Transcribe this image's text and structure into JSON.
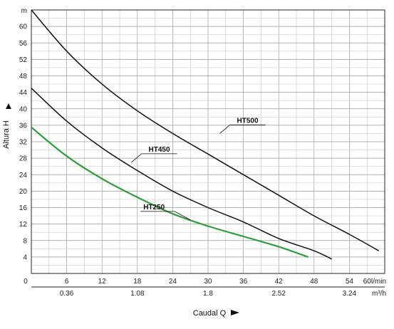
{
  "chart_data": {
    "type": "line",
    "ylabel": "Altura H",
    "yunit": "m",
    "xlabel": "Caudal Q",
    "xunit_primary": "l/min",
    "xunit_secondary": "m³/h",
    "xlim": [
      0,
      60
    ],
    "ylim": [
      0,
      64
    ],
    "grid": true,
    "y_ticks": [
      4,
      8,
      12,
      16,
      20,
      24,
      28,
      32,
      36,
      40,
      44,
      48,
      52,
      56,
      60
    ],
    "x_ticks_primary": [
      {
        "v": 0,
        "label": "0"
      },
      {
        "v": 6,
        "label": "6"
      },
      {
        "v": 12,
        "label": "12"
      },
      {
        "v": 18,
        "label": "18"
      },
      {
        "v": 24,
        "label": "24"
      },
      {
        "v": 30,
        "label": "30"
      },
      {
        "v": 36,
        "label": "36"
      },
      {
        "v": 42,
        "label": "42"
      },
      {
        "v": 48,
        "label": "48"
      },
      {
        "v": 54,
        "label": "54"
      },
      {
        "v": 60,
        "label": "60l/min"
      }
    ],
    "x_ticks_secondary": [
      {
        "v": 6,
        "label": "0.36"
      },
      {
        "v": 18,
        "label": "1.08"
      },
      {
        "v": 30,
        "label": "1.8"
      },
      {
        "v": 42,
        "label": "2.52"
      },
      {
        "v": 54,
        "label": "3.24"
      },
      {
        "v": 60,
        "label": "m³/h"
      }
    ],
    "series": [
      {
        "name": "HT500",
        "color": "#111111",
        "label_at": [
          32,
          34
        ],
        "points": [
          [
            0,
            64
          ],
          [
            6,
            54
          ],
          [
            12,
            46
          ],
          [
            18,
            39.5
          ],
          [
            24,
            34
          ],
          [
            30,
            29
          ],
          [
            36,
            24
          ],
          [
            42,
            19
          ],
          [
            48,
            14
          ],
          [
            54,
            9.5
          ],
          [
            59,
            5.5
          ]
        ]
      },
      {
        "name": "HT450",
        "color": "#111111",
        "label_at": [
          17,
          27
        ],
        "points": [
          [
            0,
            45
          ],
          [
            6,
            37
          ],
          [
            12,
            30.5
          ],
          [
            18,
            25
          ],
          [
            24,
            20
          ],
          [
            30,
            16
          ],
          [
            36,
            12.5
          ],
          [
            42,
            8.5
          ],
          [
            48,
            5.5
          ],
          [
            51,
            3.5
          ]
        ]
      },
      {
        "name": "HT250",
        "color": "#2f9e3b",
        "label_at": [
          27,
          13
        ],
        "points": [
          [
            0,
            35.5
          ],
          [
            6,
            28.5
          ],
          [
            12,
            23
          ],
          [
            18,
            18.5
          ],
          [
            24,
            14.5
          ],
          [
            30,
            11.5
          ],
          [
            36,
            9
          ],
          [
            42,
            6.5
          ],
          [
            47,
            4
          ]
        ]
      }
    ]
  }
}
